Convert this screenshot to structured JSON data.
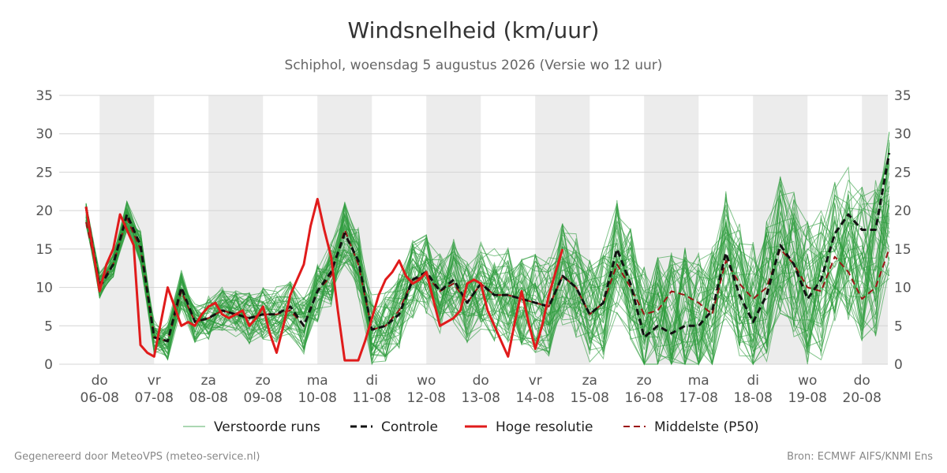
{
  "chart_data": {
    "type": "line",
    "title": "Windsnelheid (km/uur)",
    "subtitle": "Schiphol, woensdag  5 augustus 2026 (Versie wo 12 uur)",
    "ylim": [
      0,
      35
    ],
    "yticks": [
      0,
      5,
      10,
      15,
      20,
      25,
      30,
      35
    ],
    "x_start": "2026-08-05T18:00",
    "x_end": "2026-08-20T12:00",
    "x_ticks": [
      {
        "day": "do",
        "date": "06-08"
      },
      {
        "day": "vr",
        "date": "07-08"
      },
      {
        "day": "za",
        "date": "08-08"
      },
      {
        "day": "zo",
        "date": "09-08"
      },
      {
        "day": "ma",
        "date": "10-08"
      },
      {
        "day": "di",
        "date": "11-08"
      },
      {
        "day": "wo",
        "date": "12-08"
      },
      {
        "day": "do",
        "date": "13-08"
      },
      {
        "day": "vr",
        "date": "14-08"
      },
      {
        "day": "za",
        "date": "15-08"
      },
      {
        "day": "zo",
        "date": "16-08"
      },
      {
        "day": "ma",
        "date": "17-08"
      },
      {
        "day": "di",
        "date": "18-08"
      },
      {
        "day": "wo",
        "date": "19-08"
      },
      {
        "day": "do",
        "date": "20-08"
      }
    ],
    "grid": true,
    "legend_position": "bottom",
    "series": [
      {
        "name": "Controle",
        "color": "#111111",
        "style": "dashed",
        "step_hours": 6,
        "values": [
          20.5,
          10,
          13,
          19.5,
          15.5,
          3.5,
          3,
          10,
          5.5,
          6,
          7,
          6.5,
          6,
          6.5,
          6.5,
          7.5,
          5,
          9.5,
          12,
          17,
          13.5,
          4.5,
          5,
          6.5,
          11,
          12,
          9.5,
          11,
          8,
          10.5,
          9,
          9,
          8.5,
          8,
          7.5,
          11.5,
          10,
          6.5,
          8,
          15,
          10.5,
          3.5,
          5,
          4,
          5,
          5,
          7,
          14.5,
          9,
          5.5,
          9,
          15.5,
          13,
          8.5,
          11,
          17,
          19.5,
          17.5,
          17.5,
          27.5
        ]
      },
      {
        "name": "Hoge resolutie",
        "color": "#e01b1b",
        "style": "solid",
        "step_hours": 3,
        "values": [
          20.5,
          15,
          9.5,
          13,
          15,
          19.5,
          17.5,
          15.5,
          2.5,
          1.5,
          1,
          5.5,
          10,
          7.5,
          5,
          5.5,
          5,
          6.5,
          7.5,
          8,
          6.5,
          6,
          6.5,
          7,
          5,
          6,
          7.5,
          4,
          1.5,
          5,
          9,
          11,
          13,
          18,
          21.5,
          17.5,
          14,
          7,
          0.5,
          0.5,
          0.5,
          3,
          6,
          9,
          11,
          12,
          13.5,
          11.5,
          10.5,
          11,
          12,
          8.5,
          5,
          5.5,
          6,
          7,
          10.5,
          11,
          10.5,
          7,
          5,
          3,
          1,
          5.5,
          9.5,
          5.5,
          2,
          5,
          9,
          12,
          15
        ]
      },
      {
        "name": "Middelste (P50)",
        "color": "#9b1414",
        "style": "dashed",
        "step_hours": 6,
        "values": [
          18.5,
          10.5,
          13,
          19,
          15,
          3.5,
          3,
          9.5,
          5.5,
          6,
          7,
          6.5,
          6,
          6.5,
          6.5,
          7,
          5,
          9.5,
          11.5,
          17.5,
          13,
          4.5,
          5,
          7,
          11,
          11.5,
          9.5,
          10.5,
          8,
          10.5,
          9,
          9,
          8.5,
          8,
          7.5,
          11.5,
          10,
          6.5,
          8,
          13,
          10,
          6.5,
          7,
          9.5,
          9,
          8,
          6.5,
          13.5,
          10.5,
          8.5,
          10,
          15,
          13,
          10,
          9.5,
          14,
          12,
          8.5,
          10,
          15
        ]
      }
    ],
    "ensemble": {
      "name": "Verstoorde runs",
      "color": "#2e9c3e",
      "members": 50
    }
  },
  "legend": {
    "ensemble_label": "Verstoorde runs",
    "control_label": "Controle",
    "highres_label": "Hoge resolutie",
    "median_label": "Middelste (P50)"
  },
  "footer": {
    "left": "Gegenereerd door MeteoVPS (meteo-service.nl)",
    "right": "Bron: ECMWF AIFS/KNMI Ens"
  }
}
